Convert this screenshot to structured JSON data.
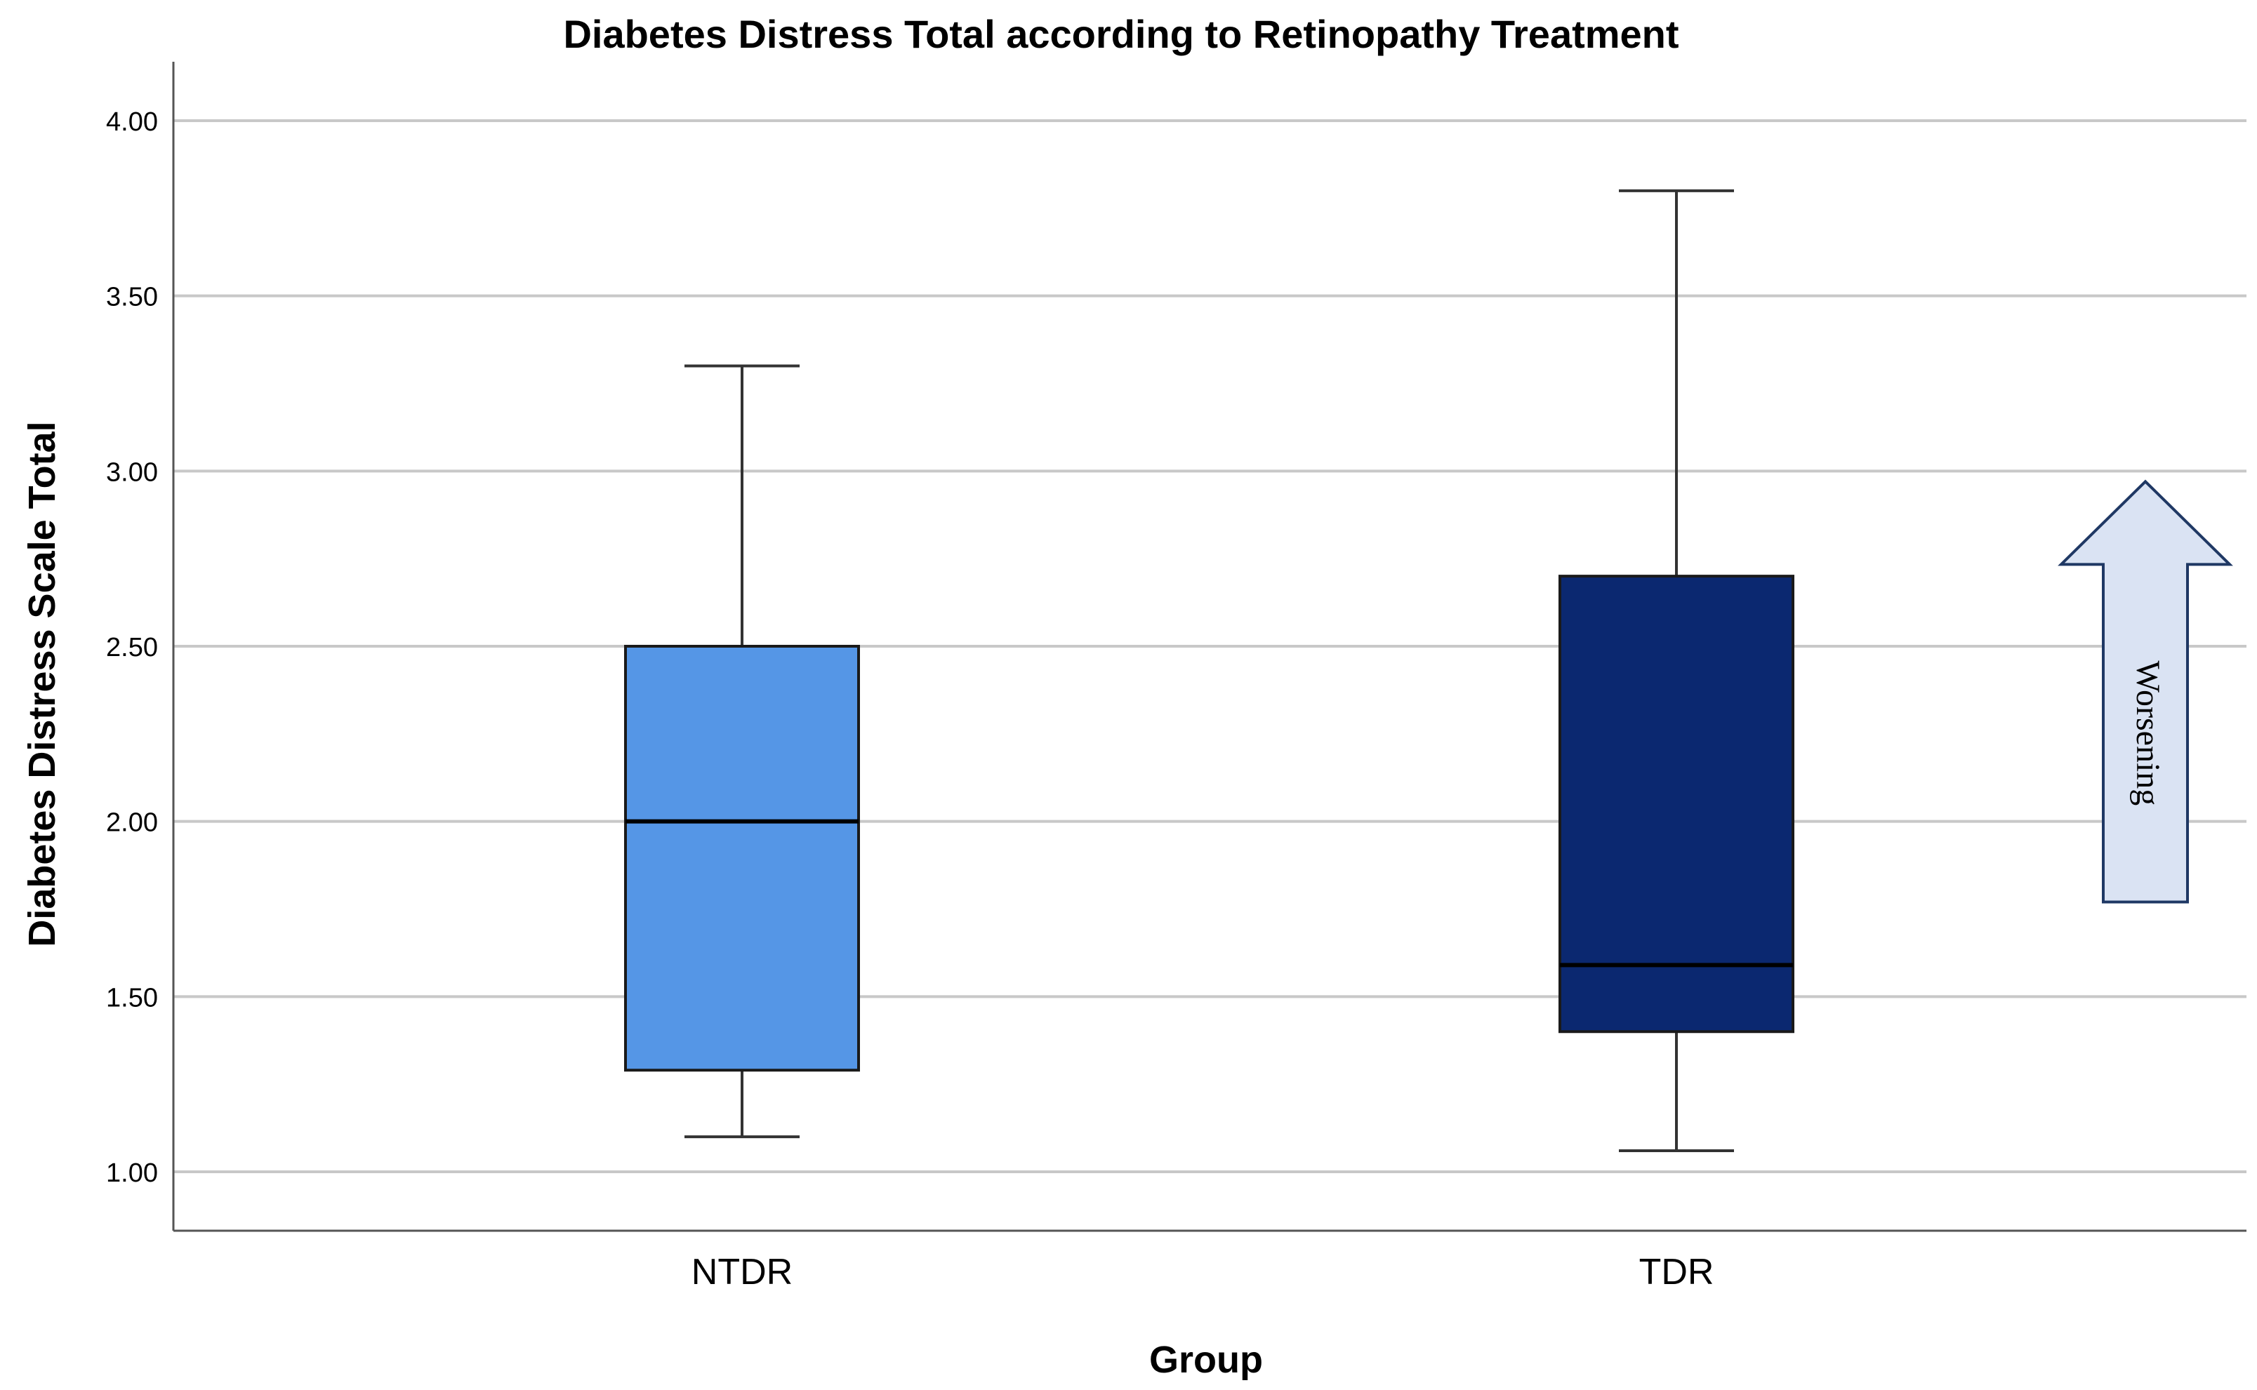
{
  "chart_data": {
    "type": "boxplot",
    "title": "Diabetes Distress Total according to Retinopathy Treatment",
    "xlabel": "Group",
    "ylabel": "Diabetes Distress Scale Total",
    "ylim": [
      0.83,
      4.17
    ],
    "yticks": [
      1.0,
      1.5,
      2.0,
      2.5,
      3.0,
      3.5,
      4.0
    ],
    "ytick_labels": [
      "1.00",
      "1.50",
      "2.00",
      "2.50",
      "3.00",
      "3.50",
      "4.00"
    ],
    "grid": true,
    "categories": [
      "NTDR",
      "TDR"
    ],
    "boxes": [
      {
        "name": "NTDR",
        "min": 1.1,
        "q1": 1.29,
        "median": 2.0,
        "q3": 2.5,
        "max": 3.3,
        "color": "#5596E6"
      },
      {
        "name": "TDR",
        "min": 1.06,
        "q1": 1.4,
        "median": 1.59,
        "q3": 2.7,
        "max": 3.8,
        "color": "#0B2870"
      }
    ],
    "annotation": {
      "label": "Worsening",
      "direction": "up",
      "from": 1.77,
      "to": 2.97,
      "fill": "#DAE3F3",
      "stroke": "#1F3864"
    },
    "colors": {
      "grid": "#C8C8C8",
      "axis": "#555555",
      "whisker": "#333333",
      "median": "#000000"
    }
  }
}
